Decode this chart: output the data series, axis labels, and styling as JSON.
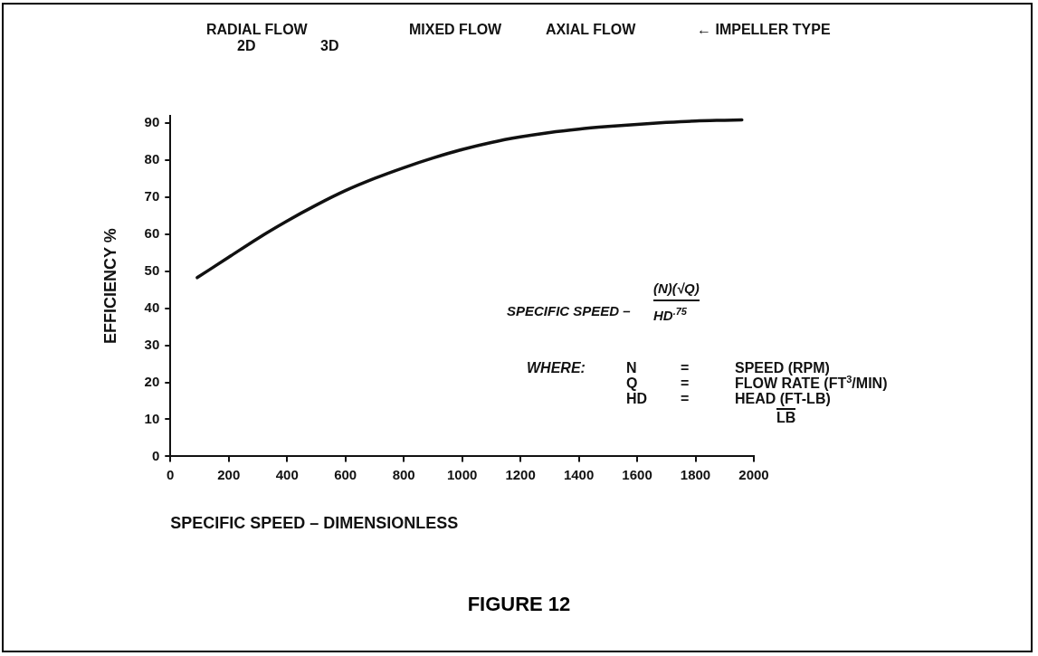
{
  "chart_data": {
    "type": "line",
    "title": "FIGURE 12",
    "xlabel": "SPECIFIC SPEED – DIMENSIONLESS",
    "ylabel": "EFFICIENCY %",
    "x": [
      92,
      200,
      300,
      400,
      500,
      600,
      700,
      800,
      900,
      1000,
      1100,
      1200,
      1300,
      1400,
      1500,
      1600,
      1700,
      1800,
      1900,
      1959
    ],
    "series": [
      {
        "color": "#111111",
        "values": [
          48.3,
          53.8,
          58.9,
          63.6,
          67.9,
          71.8,
          75.1,
          78.0,
          80.6,
          82.9,
          84.8,
          86.3,
          87.5,
          88.4,
          89.1,
          89.7,
          90.2,
          90.6,
          90.8,
          90.9
        ]
      }
    ],
    "xlim": [
      0,
      2000
    ],
    "xticks": [
      0,
      200,
      400,
      600,
      800,
      1000,
      1200,
      1400,
      1600,
      1800,
      2000
    ],
    "ylim": [
      0,
      92
    ],
    "yticks": [
      0,
      10,
      20,
      30,
      40,
      50,
      60,
      70,
      80,
      90
    ],
    "grid": false,
    "legend": false,
    "marker": "none",
    "line_style": "solid",
    "annotations": [
      "RADIAL FLOW",
      "2D",
      "3D",
      "MIXED FLOW",
      "AXIAL FLOW",
      "← IMPELLER TYPE",
      "SPECIFIC SPEED –",
      "(N)(√Q)",
      "HD$^{.75}$",
      "WHERE:",
      "N",
      "=",
      "SPEED (RPM)",
      "Q",
      "=",
      "FLOW RATE (FT$^{3}$/MIN)",
      "HD",
      "=",
      "HEAD (FT-LB)",
      "LB"
    ]
  }
}
